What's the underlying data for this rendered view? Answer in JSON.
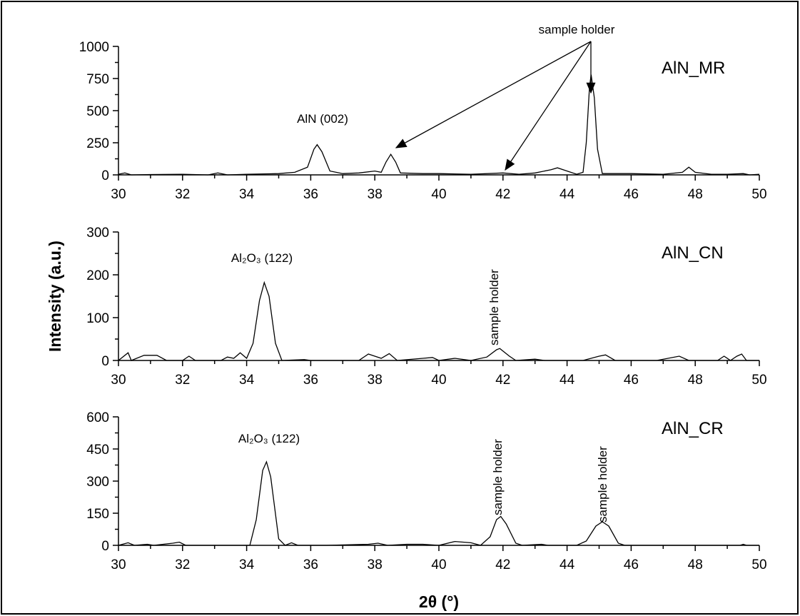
{
  "chart_data": [
    {
      "type": "line",
      "label": "AlN_MR",
      "color": "#000000",
      "annotations": [
        "sample holder",
        "AlN (002)"
      ],
      "x": [
        30.0,
        30.2,
        30.4,
        31,
        32,
        32.8,
        33.1,
        33.4,
        34,
        35,
        35.5,
        35.9,
        36.1,
        36.2,
        36.35,
        36.6,
        37,
        37.5,
        38,
        38.2,
        38.35,
        38.5,
        38.65,
        38.8,
        39.5,
        40,
        41,
        42,
        42.5,
        43,
        43.5,
        43.7,
        44,
        44.3,
        44.5,
        44.6,
        44.7,
        44.75,
        44.85,
        44.95,
        45.1,
        46,
        47,
        47.6,
        47.8,
        48,
        48.5,
        49,
        49.5,
        49.7,
        50
      ],
      "values": [
        5,
        15,
        0,
        3,
        5,
        0,
        15,
        0,
        5,
        10,
        20,
        60,
        200,
        235,
        180,
        30,
        10,
        15,
        30,
        20,
        100,
        160,
        100,
        15,
        10,
        10,
        5,
        15,
        5,
        15,
        40,
        55,
        30,
        5,
        20,
        250,
        680,
        780,
        600,
        200,
        10,
        10,
        5,
        20,
        60,
        20,
        5,
        5,
        10,
        0,
        5
      ],
      "xlim": [
        30,
        50
      ],
      "xticks": [
        30,
        32,
        34,
        36,
        38,
        40,
        42,
        44,
        46,
        48,
        50
      ],
      "ylim": [
        0,
        1000
      ],
      "yticks": [
        0,
        250,
        500,
        750,
        1000
      ]
    },
    {
      "type": "line",
      "label": "AlN_CN",
      "color": "#000000",
      "ylabel": "Intensity (a.u.)",
      "annotations": [
        "Al₂O₃ (122)",
        "sample holder"
      ],
      "x": [
        30,
        30.3,
        30.4,
        30.8,
        31.2,
        31.5,
        32,
        32.2,
        32.4,
        33.2,
        33.4,
        33.6,
        33.8,
        34,
        34.2,
        34.4,
        34.55,
        34.7,
        34.9,
        35.1,
        35.8,
        36,
        37.5,
        37.8,
        38,
        38.2,
        38.45,
        38.7,
        39.5,
        39.8,
        40,
        40.5,
        41,
        41.5,
        41.8,
        41.9,
        42.2,
        42.4,
        43,
        43.3,
        44.5,
        45,
        45.2,
        45.5,
        46.8,
        47.5,
        47.8,
        48.7,
        48.9,
        49.1,
        49.3,
        49.45,
        49.6,
        50
      ],
      "values": [
        0,
        18,
        0,
        12,
        12,
        0,
        0,
        10,
        0,
        0,
        8,
        5,
        18,
        5,
        40,
        140,
        182,
        150,
        40,
        0,
        2,
        0,
        0,
        15,
        10,
        5,
        16,
        0,
        5,
        7,
        0,
        5,
        0,
        8,
        25,
        28,
        10,
        0,
        3,
        0,
        0,
        10,
        13,
        0,
        0,
        10,
        0,
        0,
        10,
        0,
        10,
        15,
        0,
        0
      ],
      "xlim": [
        30,
        50
      ],
      "xticks": [
        30,
        32,
        34,
        36,
        38,
        40,
        42,
        44,
        46,
        48,
        50
      ],
      "ylim": [
        0,
        300
      ],
      "yticks": [
        0,
        100,
        200,
        300
      ]
    },
    {
      "type": "line",
      "label": "AlN_CR",
      "color": "#000000",
      "xlabel": "2θ (°)",
      "annotations": [
        "Al₂O₃ (122)",
        "sample holder",
        "sample holder"
      ],
      "x": [
        30,
        30.3,
        30.5,
        30.9,
        31.1,
        31.7,
        31.9,
        32.1,
        34.1,
        34.3,
        34.5,
        34.62,
        34.75,
        35,
        35.2,
        35.4,
        35.6,
        36.5,
        37.8,
        38.1,
        38.4,
        39,
        39.5,
        40,
        40.5,
        41,
        41.3,
        41.6,
        41.8,
        41.93,
        42.1,
        42.4,
        42.6,
        43.2,
        43.4,
        44.3,
        44.6,
        44.9,
        45.1,
        45.3,
        45.6,
        45.8,
        49.4,
        49.5,
        49.6,
        50
      ],
      "values": [
        0,
        12,
        0,
        5,
        0,
        10,
        15,
        0,
        0,
        120,
        350,
        390,
        320,
        30,
        0,
        12,
        0,
        0,
        5,
        10,
        0,
        5,
        5,
        0,
        18,
        12,
        0,
        40,
        120,
        135,
        100,
        10,
        0,
        5,
        0,
        0,
        20,
        90,
        110,
        90,
        10,
        0,
        0,
        5,
        0,
        0
      ],
      "xlim": [
        30,
        50
      ],
      "xticks": [
        30,
        32,
        34,
        36,
        38,
        40,
        42,
        44,
        46,
        48,
        50
      ],
      "ylim": [
        0,
        600
      ],
      "yticks": [
        0,
        150,
        300,
        450,
        600
      ]
    }
  ]
}
